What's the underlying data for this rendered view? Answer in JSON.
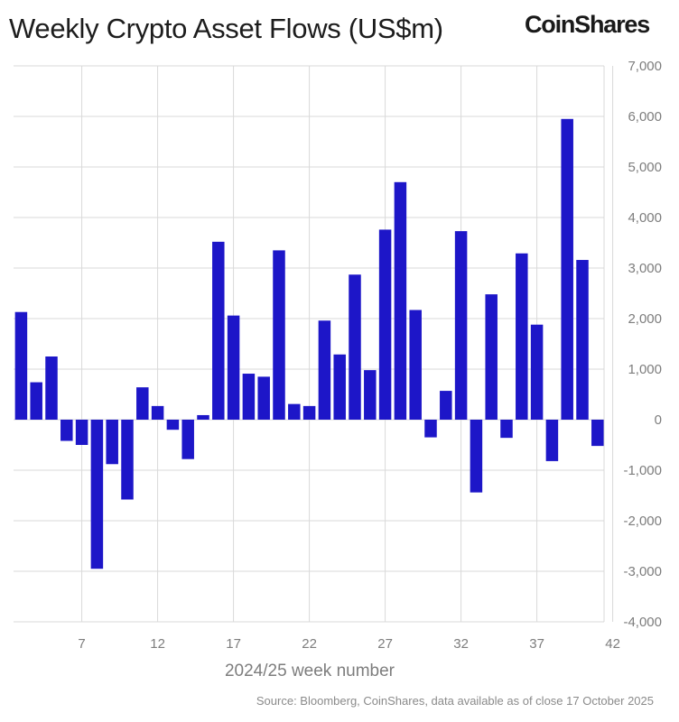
{
  "header": {
    "title": "Weekly Crypto Asset Flows (US$m)",
    "brand": "CoinShares"
  },
  "footer": {
    "source": "Source: Bloomberg, CoinShares, data available as of close 17 October 2025"
  },
  "colors": {
    "bar": "#1d16c8",
    "grid": "#d9d9d9",
    "text": "#7d7d7d"
  },
  "chart_data": {
    "type": "bar",
    "title": "Weekly Crypto Asset Flows (US$m)",
    "xlabel": "2024/25 week number",
    "ylabel": "",
    "ylim": [
      -4000,
      7000
    ],
    "y_ticks": [
      "7,000",
      "6,000",
      "5,000",
      "4,000",
      "3,000",
      "2,000",
      "1,000",
      "0",
      "-1,000",
      "-2,000",
      "-3,000",
      "-4,000"
    ],
    "y_tick_values": [
      7000,
      6000,
      5000,
      4000,
      3000,
      2000,
      1000,
      0,
      -1000,
      -2000,
      -3000,
      -4000
    ],
    "y_axis_position": "right",
    "x_tick_labels": [
      "7",
      "12",
      "17",
      "22",
      "27",
      "32",
      "37",
      "42"
    ],
    "categories": [
      3,
      4,
      5,
      6,
      7,
      8,
      9,
      10,
      11,
      12,
      13,
      14,
      15,
      16,
      17,
      18,
      19,
      20,
      21,
      22,
      23,
      24,
      25,
      26,
      27,
      28,
      29,
      30,
      31,
      32,
      33,
      34,
      35,
      36,
      37,
      38,
      39,
      40,
      41,
      42
    ],
    "values": [
      2130,
      740,
      1250,
      -420,
      -500,
      -2950,
      -880,
      -1580,
      640,
      270,
      -200,
      -780,
      90,
      3520,
      2060,
      910,
      850,
      3350,
      310,
      270,
      1960,
      1290,
      2870,
      980,
      3760,
      4700,
      2170,
      -350,
      570,
      3730,
      -1440,
      2480,
      -360,
      3290,
      1880,
      -820,
      5950,
      3160,
      -520,
      0
    ],
    "grid": true,
    "legend": "none"
  }
}
